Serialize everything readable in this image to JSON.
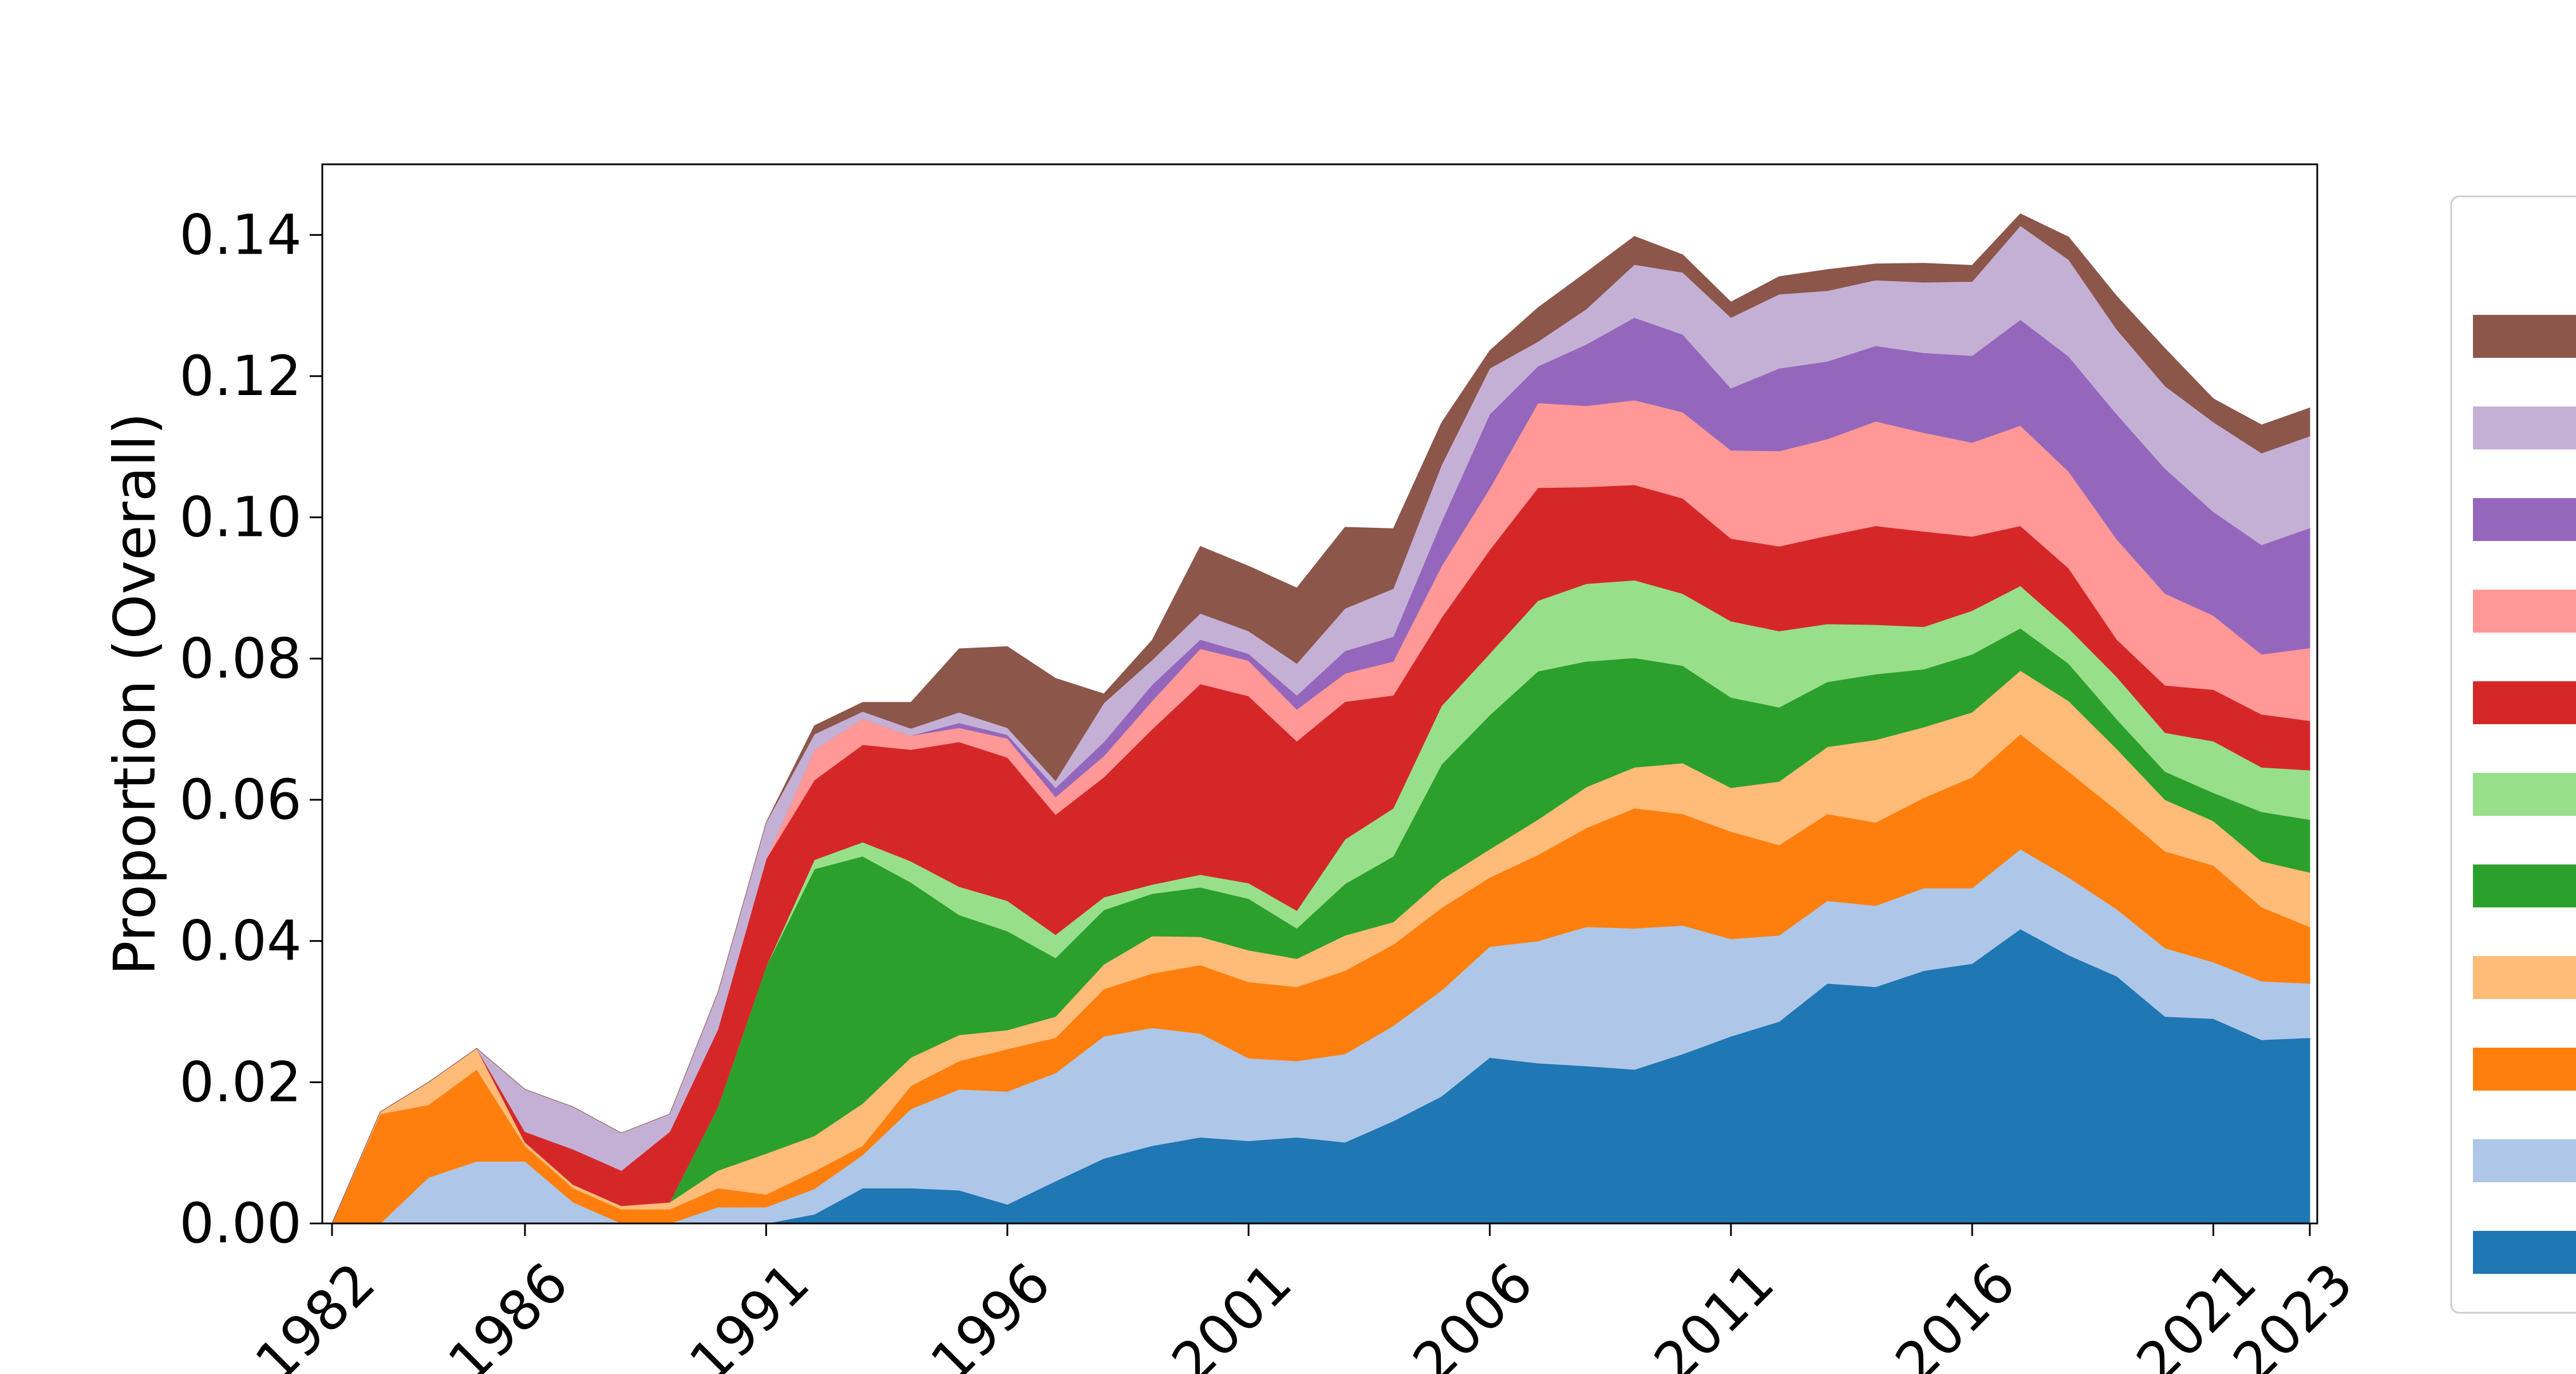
{
  "chart_data": {
    "type": "area",
    "stacked": true,
    "title": "",
    "xlabel": "",
    "ylabel": "Proportion (Overall)",
    "xlim": [
      1982,
      2023
    ],
    "ylim": [
      0,
      0.15
    ],
    "x_ticks": [
      1982,
      1986,
      1991,
      1996,
      2001,
      2006,
      2011,
      2016,
      2021,
      2023
    ],
    "y_ticks": [
      0.0,
      0.02,
      0.04,
      0.06,
      0.08,
      0.1,
      0.12,
      0.14
    ],
    "y_tick_labels": [
      "0.00",
      "0.02",
      "0.04",
      "0.06",
      "0.08",
      "0.10",
      "0.12",
      "0.14"
    ],
    "grid": false,
    "legend": {
      "position": "right",
      "title": "",
      "entries_visible": false
    },
    "x": [
      1982,
      1983,
      1984,
      1985,
      1986,
      1987,
      1988,
      1989,
      1990,
      1991,
      1992,
      1993,
      1994,
      1995,
      1996,
      1997,
      1998,
      1999,
      2000,
      2001,
      2002,
      2003,
      2004,
      2005,
      2006,
      2007,
      2008,
      2009,
      2010,
      2011,
      2012,
      2013,
      2014,
      2015,
      2016,
      2017,
      2018,
      2019,
      2020,
      2021,
      2022,
      2023
    ],
    "series": [
      {
        "color": "#1f77b4",
        "values": [
          0,
          0,
          0,
          0,
          0,
          0,
          0,
          0,
          0,
          0,
          0.0013,
          0.005,
          0.005,
          0.0047,
          0.0027,
          0.006,
          0.0092,
          0.011,
          0.0122,
          0.0117,
          0.0122,
          0.0115,
          0.0145,
          0.018,
          0.0235,
          0.0227,
          0.0223,
          0.0218,
          0.024,
          0.0265,
          0.0286,
          0.034,
          0.0335,
          0.0358,
          0.0368,
          0.0417,
          0.038,
          0.035,
          0.0293,
          0.029,
          0.026,
          0.0263
        ]
      },
      {
        "color": "#aec7e8",
        "values": [
          0,
          0,
          0.0065,
          0.0088,
          0.0088,
          0.003,
          0,
          0,
          0.0023,
          0.0023,
          0.0036,
          0.0047,
          0.0112,
          0.0143,
          0.016,
          0.0153,
          0.0173,
          0.0167,
          0.0147,
          0.0117,
          0.0108,
          0.0125,
          0.0135,
          0.015,
          0.0157,
          0.0173,
          0.0197,
          0.02,
          0.0182,
          0.0138,
          0.0122,
          0.0117,
          0.0115,
          0.0117,
          0.0107,
          0.0113,
          0.011,
          0.0095,
          0.0097,
          0.008,
          0.0083,
          0.0077
        ]
      },
      {
        "color": "#ff7f0e",
        "values": [
          0,
          0.0155,
          0.0103,
          0.013,
          0.0022,
          0.002,
          0.002,
          0.002,
          0.0027,
          0.0018,
          0.0025,
          0.0013,
          0.0033,
          0.004,
          0.006,
          0.005,
          0.0067,
          0.0077,
          0.0097,
          0.0108,
          0.0105,
          0.0118,
          0.0115,
          0.0117,
          0.0098,
          0.0122,
          0.014,
          0.017,
          0.0158,
          0.0152,
          0.0128,
          0.0123,
          0.0118,
          0.0128,
          0.0157,
          0.0163,
          0.015,
          0.014,
          0.0137,
          0.0137,
          0.0105,
          0.008
        ]
      },
      {
        "color": "#ffbb78",
        "values": [
          0,
          0.0003,
          0.0032,
          0.003,
          0.0005,
          0.0005,
          0.0005,
          0.001,
          0.0025,
          0.0058,
          0.005,
          0.006,
          0.004,
          0.0037,
          0.0027,
          0.003,
          0.0035,
          0.0053,
          0.004,
          0.0045,
          0.004,
          0.005,
          0.0032,
          0.004,
          0.004,
          0.005,
          0.0058,
          0.0058,
          0.0072,
          0.0062,
          0.009,
          0.0095,
          0.0117,
          0.01,
          0.0092,
          0.009,
          0.01,
          0.0087,
          0.0073,
          0.0063,
          0.0065,
          0.0077
        ]
      },
      {
        "color": "#2ca02c",
        "values": [
          0,
          0,
          0,
          0,
          0,
          0,
          0,
          0,
          0.009,
          0.0265,
          0.0378,
          0.035,
          0.0248,
          0.017,
          0.014,
          0.0083,
          0.0077,
          0.006,
          0.007,
          0.0073,
          0.0043,
          0.0073,
          0.0093,
          0.0163,
          0.019,
          0.021,
          0.0178,
          0.0155,
          0.0138,
          0.0128,
          0.0105,
          0.0092,
          0.0093,
          0.0082,
          0.0082,
          0.006,
          0.0053,
          0.0042,
          0.004,
          0.004,
          0.007,
          0.0075
        ]
      },
      {
        "color": "#98df8a",
        "values": [
          0,
          0,
          0,
          0,
          0,
          0,
          0,
          0,
          0,
          0,
          0.0013,
          0.002,
          0.003,
          0.004,
          0.0043,
          0.0033,
          0.0018,
          0.0013,
          0.0018,
          0.0022,
          0.0025,
          0.0063,
          0.0068,
          0.0083,
          0.0087,
          0.01,
          0.011,
          0.011,
          0.0102,
          0.0108,
          0.0108,
          0.0082,
          0.007,
          0.006,
          0.0062,
          0.006,
          0.005,
          0.006,
          0.0055,
          0.0073,
          0.0063,
          0.007
        ]
      },
      {
        "color": "#d62728",
        "values": [
          0,
          0,
          0,
          0,
          0.0015,
          0.005,
          0.005,
          0.01,
          0.011,
          0.0152,
          0.0113,
          0.0138,
          0.0158,
          0.0205,
          0.0203,
          0.017,
          0.017,
          0.022,
          0.027,
          0.0265,
          0.024,
          0.0195,
          0.016,
          0.0125,
          0.0147,
          0.016,
          0.0137,
          0.0135,
          0.0135,
          0.0117,
          0.012,
          0.0125,
          0.014,
          0.0135,
          0.0105,
          0.0085,
          0.0085,
          0.0053,
          0.0067,
          0.0073,
          0.0075,
          0.007
        ]
      },
      {
        "color": "#ff9896",
        "values": [
          0,
          0,
          0,
          0,
          0,
          0,
          0,
          0,
          0,
          0,
          0.0043,
          0.0037,
          0.002,
          0.002,
          0.0027,
          0.0025,
          0.003,
          0.004,
          0.005,
          0.005,
          0.0045,
          0.004,
          0.0048,
          0.0073,
          0.0087,
          0.012,
          0.0115,
          0.012,
          0.0122,
          0.0125,
          0.0135,
          0.0137,
          0.0148,
          0.014,
          0.0133,
          0.0142,
          0.0137,
          0.0142,
          0.013,
          0.0105,
          0.0085,
          0.0103
        ]
      },
      {
        "color": "#9467bd",
        "values": [
          0,
          0,
          0,
          0,
          0,
          0,
          0,
          0,
          0,
          0,
          0,
          0,
          0,
          0.0007,
          0.0005,
          0.0013,
          0.002,
          0.0023,
          0.0013,
          0.001,
          0.002,
          0.0032,
          0.0035,
          0.0063,
          0.0105,
          0.0052,
          0.0087,
          0.0117,
          0.011,
          0.0088,
          0.0117,
          0.011,
          0.0107,
          0.0113,
          0.0123,
          0.015,
          0.0163,
          0.0177,
          0.0177,
          0.0147,
          0.0155,
          0.017
        ]
      },
      {
        "color": "#c5b0d5",
        "values": [
          0,
          0,
          0,
          0,
          0.006,
          0.006,
          0.0053,
          0.0025,
          0.0052,
          0.0052,
          0.0022,
          0.001,
          0.001,
          0.0015,
          0.001,
          0.001,
          0.0055,
          0.0035,
          0.0037,
          0.0032,
          0.0045,
          0.006,
          0.0068,
          0.008,
          0.0065,
          0.0035,
          0.005,
          0.0075,
          0.0088,
          0.01,
          0.0105,
          0.01,
          0.0093,
          0.01,
          0.0105,
          0.0133,
          0.0137,
          0.012,
          0.0117,
          0.0127,
          0.013,
          0.013
        ]
      },
      {
        "color": "#8c564b",
        "values": [
          0,
          0,
          0,
          0,
          0,
          0,
          0,
          0,
          0,
          0,
          0.0012,
          0.0013,
          0.0037,
          0.009,
          0.0115,
          0.0145,
          0.0013,
          0.0028,
          0.0095,
          0.0092,
          0.0107,
          0.0115,
          0.0085,
          0.006,
          0.0025,
          0.0048,
          0.0052,
          0.004,
          0.0025,
          0.0022,
          0.0025,
          0.003,
          0.0023,
          0.0027,
          0.0023,
          0.0017,
          0.0032,
          0.0047,
          0.0053,
          0.0033,
          0.004,
          0.004
        ]
      }
    ]
  }
}
